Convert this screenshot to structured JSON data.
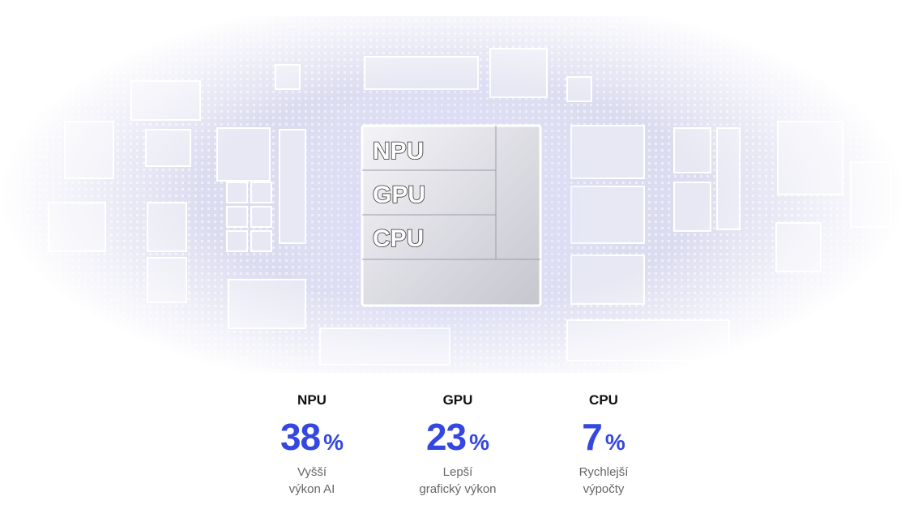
{
  "chip": {
    "labels": [
      "NPU",
      "GPU",
      "CPU"
    ]
  },
  "stats": [
    {
      "label": "NPU",
      "value": "38",
      "unit": "%",
      "description": [
        "Vyšší",
        "výkon AI"
      ]
    },
    {
      "label": "GPU",
      "value": "23",
      "unit": "%",
      "description": [
        "Lepší",
        "grafický výkon"
      ]
    },
    {
      "label": "CPU",
      "value": "7",
      "unit": "%",
      "description": [
        "Rychlejší",
        "výpočty"
      ]
    }
  ]
}
